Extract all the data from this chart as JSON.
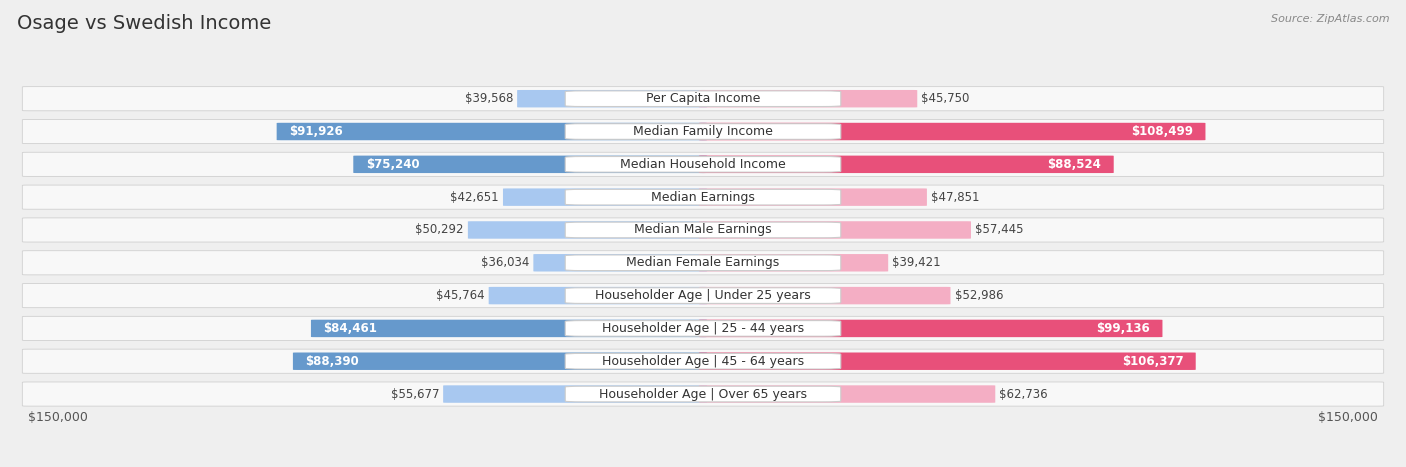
{
  "title": "Osage vs Swedish Income",
  "source": "Source: ZipAtlas.com",
  "categories": [
    "Per Capita Income",
    "Median Family Income",
    "Median Household Income",
    "Median Earnings",
    "Median Male Earnings",
    "Median Female Earnings",
    "Householder Age | Under 25 years",
    "Householder Age | 25 - 44 years",
    "Householder Age | 45 - 64 years",
    "Householder Age | Over 65 years"
  ],
  "osage_values": [
    39568,
    91926,
    75240,
    42651,
    50292,
    36034,
    45764,
    84461,
    88390,
    55677
  ],
  "swedish_values": [
    45750,
    108499,
    88524,
    47851,
    57445,
    39421,
    52986,
    99136,
    106377,
    62736
  ],
  "max_val": 150000,
  "osage_color_light": "#a8c8f0",
  "osage_color_dark": "#6699cc",
  "swedish_color_light": "#f4aec4",
  "swedish_color_dark": "#e8507a",
  "osage_label": "Osage",
  "swedish_label": "Swedish",
  "background_color": "#efefef",
  "row_bg_color": "#f8f8f8",
  "label_fontsize": 9,
  "value_fontsize": 8.5,
  "title_fontsize": 14,
  "osage_threshold": 70000,
  "swedish_threshold": 70000
}
